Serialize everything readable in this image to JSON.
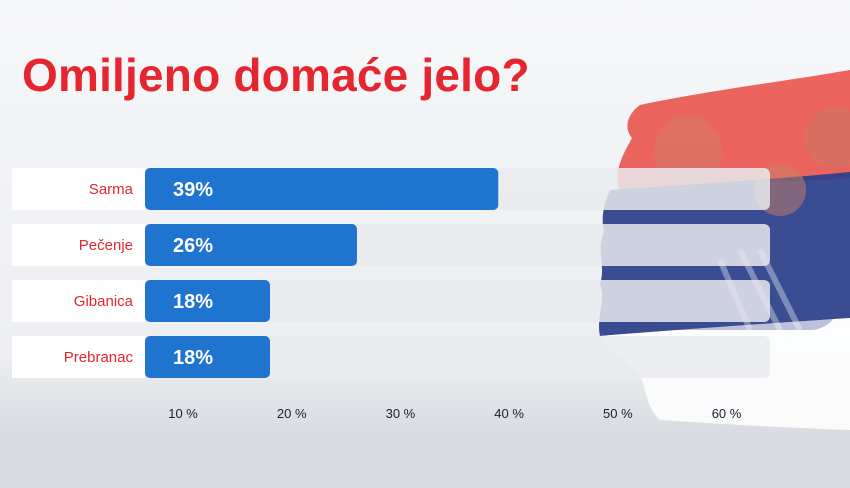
{
  "title": "Omiljeno domaće jelo?",
  "chart_data": {
    "type": "bar",
    "orientation": "horizontal",
    "categories": [
      "Sarma",
      "Pečenje",
      "Gibanica",
      "Prebranac"
    ],
    "values": [
      39,
      26,
      18,
      18
    ],
    "value_labels": [
      "39%",
      "26%",
      "18%",
      "18%"
    ],
    "x_ticks": [
      10,
      20,
      30,
      40,
      50,
      60
    ],
    "x_tick_labels": [
      "10 %",
      "20 %",
      "30 %",
      "40 %",
      "50 %",
      "60 %"
    ],
    "xlim": [
      6.5,
      64
    ],
    "grid": false,
    "colors": {
      "bar": "#1f74cf",
      "track": "#e9eaed",
      "label_panel": "#ffffff",
      "category_text": "#e5252f",
      "value_text": "#ffffff",
      "tick_text": "#1f1f2e",
      "title": "#e5252f"
    }
  }
}
